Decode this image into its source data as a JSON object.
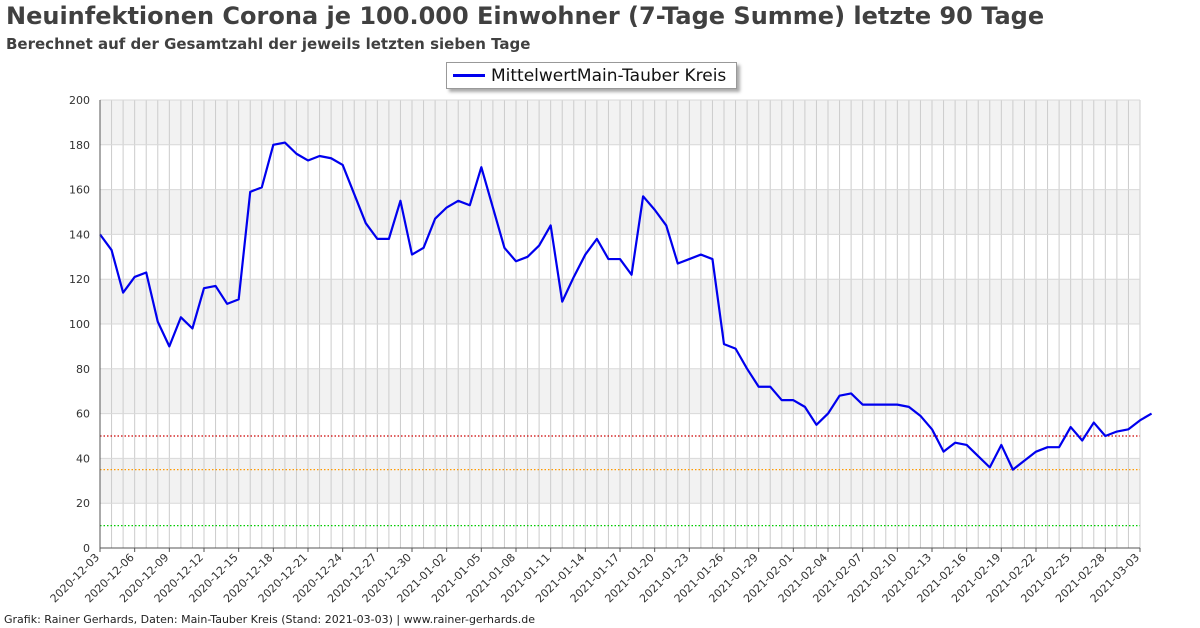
{
  "header": {
    "title": "Neuinfektionen Corona je 100.000 Einwohner (7-Tage Summe) letzte 90 Tage",
    "subtitle": "Berechnet auf der Gesamtzahl der jeweils letzten sieben Tage"
  },
  "footer": "Grafik: Rainer Gerhards, Daten: Main-Tauber Kreis (Stand: 2021-03-03) | www.rainer-gerhards.de",
  "chart_data": {
    "type": "line",
    "legend": "top-center",
    "grid": true,
    "ylim": [
      0,
      200
    ],
    "yticks": [
      0,
      20,
      40,
      60,
      80,
      100,
      120,
      140,
      160,
      180,
      200
    ],
    "x_start": "2020-12-03",
    "x_end": "2021-03-03",
    "xtick_labels": [
      "2020-12-03",
      "2020-12-06",
      "2020-12-09",
      "2020-12-12",
      "2020-12-15",
      "2020-12-18",
      "2020-12-21",
      "2020-12-24",
      "2020-12-27",
      "2020-12-30",
      "2021-01-02",
      "2021-01-05",
      "2021-01-08",
      "2021-01-11",
      "2021-01-14",
      "2021-01-17",
      "2021-01-20",
      "2021-01-23",
      "2021-01-26",
      "2021-01-29",
      "2021-02-01",
      "2021-02-04",
      "2021-02-07",
      "2021-02-10",
      "2021-02-13",
      "2021-02-16",
      "2021-02-19",
      "2021-02-22",
      "2021-02-25",
      "2021-02-28",
      "2021-03-03"
    ],
    "reference_lines": [
      {
        "value": 50,
        "color": "#cc0000"
      },
      {
        "value": 35,
        "color": "#ff9900"
      },
      {
        "value": 10,
        "color": "#00cc00"
      }
    ],
    "series": [
      {
        "name": "MittelwertMain-Tauber Kreis",
        "color": "#0000ee",
        "values": [
          140,
          133,
          114,
          121,
          123,
          101,
          90,
          103,
          98,
          116,
          117,
          109,
          111,
          159,
          161,
          180,
          181,
          176,
          173,
          175,
          174,
          171,
          158,
          145,
          138,
          138,
          155,
          131,
          134,
          147,
          152,
          155,
          153,
          170,
          152,
          134,
          128,
          130,
          135,
          144,
          110,
          121,
          131,
          138,
          129,
          129,
          122,
          157,
          151,
          144,
          127,
          129,
          131,
          129,
          91,
          89,
          80,
          72,
          72,
          66,
          66,
          63,
          55,
          60,
          68,
          69,
          64,
          64,
          64,
          64,
          63,
          59,
          53,
          43,
          47,
          46,
          41,
          36,
          46,
          35,
          39,
          43,
          45,
          45,
          54,
          48,
          56,
          50,
          52,
          53,
          57,
          60
        ]
      }
    ]
  }
}
